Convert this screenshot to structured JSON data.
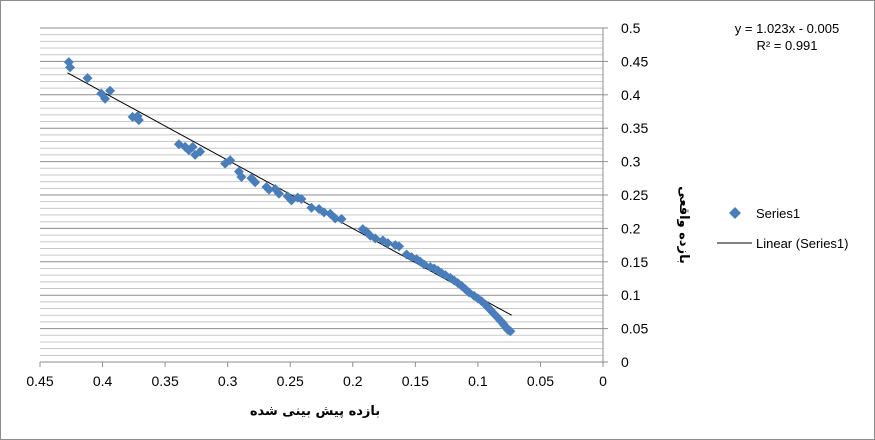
{
  "chart_data": {
    "type": "scatter",
    "title": "",
    "xlabel": "بازده پیش بینی شده",
    "ylabel": "بازده واقعی",
    "x_reversed": true,
    "xlim": [
      0,
      0.45
    ],
    "ylim": [
      0,
      0.5
    ],
    "x_ticks": [
      "0.45",
      "0.4",
      "0.35",
      "0.3",
      "0.25",
      "0.2",
      "0.15",
      "0.1",
      "0.05",
      "0"
    ],
    "y_ticks": [
      "0",
      "0.05",
      "0.1",
      "0.15",
      "0.2",
      "0.25",
      "0.3",
      "0.35",
      "0.4",
      "0.45",
      "0.5"
    ],
    "grid": "horizontal minor and major",
    "legend_position": "right",
    "series": [
      {
        "name": "Series1",
        "marker": "diamond",
        "color": "#4a7ebb",
        "points": [
          [
            0.427,
            0.449
          ],
          [
            0.426,
            0.441
          ],
          [
            0.412,
            0.425
          ],
          [
            0.401,
            0.402
          ],
          [
            0.398,
            0.394
          ],
          [
            0.394,
            0.406
          ],
          [
            0.376,
            0.367
          ],
          [
            0.371,
            0.362
          ],
          [
            0.372,
            0.368
          ],
          [
            0.339,
            0.326
          ],
          [
            0.334,
            0.322
          ],
          [
            0.331,
            0.317
          ],
          [
            0.328,
            0.322
          ],
          [
            0.326,
            0.31
          ],
          [
            0.322,
            0.315
          ],
          [
            0.302,
            0.297
          ],
          [
            0.298,
            0.302
          ],
          [
            0.291,
            0.285
          ],
          [
            0.289,
            0.277
          ],
          [
            0.281,
            0.275
          ],
          [
            0.278,
            0.269
          ],
          [
            0.269,
            0.262
          ],
          [
            0.267,
            0.258
          ],
          [
            0.262,
            0.259
          ],
          [
            0.259,
            0.252
          ],
          [
            0.252,
            0.248
          ],
          [
            0.249,
            0.242
          ],
          [
            0.244,
            0.246
          ],
          [
            0.241,
            0.244
          ],
          [
            0.233,
            0.231
          ],
          [
            0.227,
            0.229
          ],
          [
            0.223,
            0.224
          ],
          [
            0.218,
            0.222
          ],
          [
            0.214,
            0.215
          ],
          [
            0.209,
            0.214
          ],
          [
            0.192,
            0.199
          ],
          [
            0.189,
            0.195
          ],
          [
            0.186,
            0.189
          ],
          [
            0.182,
            0.185
          ],
          [
            0.176,
            0.182
          ],
          [
            0.172,
            0.178
          ],
          [
            0.166,
            0.175
          ],
          [
            0.163,
            0.173
          ],
          [
            0.157,
            0.161
          ],
          [
            0.153,
            0.157
          ],
          [
            0.149,
            0.154
          ],
          [
            0.146,
            0.15
          ],
          [
            0.143,
            0.146
          ],
          [
            0.138,
            0.142
          ],
          [
            0.135,
            0.14
          ],
          [
            0.132,
            0.137
          ],
          [
            0.129,
            0.133
          ],
          [
            0.126,
            0.13
          ],
          [
            0.122,
            0.126
          ],
          [
            0.119,
            0.122
          ],
          [
            0.116,
            0.118
          ],
          [
            0.113,
            0.114
          ],
          [
            0.11,
            0.109
          ],
          [
            0.107,
            0.104
          ],
          [
            0.103,
            0.099
          ],
          [
            0.1,
            0.095
          ],
          [
            0.097,
            0.091
          ],
          [
            0.094,
            0.086
          ],
          [
            0.092,
            0.082
          ],
          [
            0.09,
            0.078
          ],
          [
            0.088,
            0.074
          ],
          [
            0.086,
            0.07
          ],
          [
            0.084,
            0.066
          ],
          [
            0.082,
            0.062
          ],
          [
            0.08,
            0.058
          ],
          [
            0.079,
            0.055
          ],
          [
            0.077,
            0.051
          ],
          [
            0.076,
            0.048
          ],
          [
            0.074,
            0.046
          ]
        ]
      }
    ],
    "trendline": {
      "name": "Linear (Series1)",
      "color": "#000000",
      "from": [
        0.428,
        0.433
      ],
      "to": [
        0.073,
        0.07
      ],
      "equation": "y = 1.023x - 0.005",
      "r_squared": "R² = 0.991"
    }
  }
}
